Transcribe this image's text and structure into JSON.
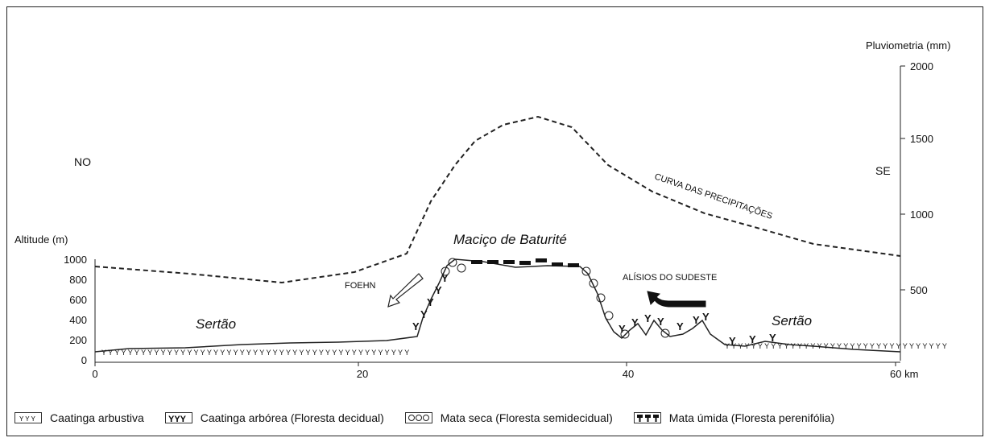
{
  "pluvio_axis": {
    "label": "Pluviometria (mm)",
    "ticks": [
      "2000",
      "1500",
      "1000",
      "500"
    ]
  },
  "altitude_axis": {
    "label": "Altitude (m)",
    "ticks": [
      "1000",
      "800",
      "600",
      "400",
      "200",
      "0"
    ]
  },
  "distance_axis": {
    "ticks": [
      "0",
      "20",
      "40",
      "60 km"
    ]
  },
  "labels": {
    "no": "NO",
    "se": "SE",
    "massif": "Maciço de Baturité",
    "sertao_left": "Sertão",
    "sertao_right": "Sertão",
    "foehn": "FOEHN",
    "alisios": "ALÍSIOS DO SUDESTE",
    "precip_curve": "CURVA DAS PRECIPITAÇÕES"
  },
  "legend": [
    {
      "label": "Caatinga arbustiva",
      "icon": "shrub-caatinga-icon"
    },
    {
      "label": "Caatinga arbórea (Floresta decidual)",
      "icon": "tree-caatinga-icon"
    },
    {
      "label": "Mata seca (Floresta semidecidual)",
      "icon": "dry-forest-icon"
    },
    {
      "label": "Mata úmida (Floresta perenifólia)",
      "icon": "humid-forest-icon"
    }
  ]
}
